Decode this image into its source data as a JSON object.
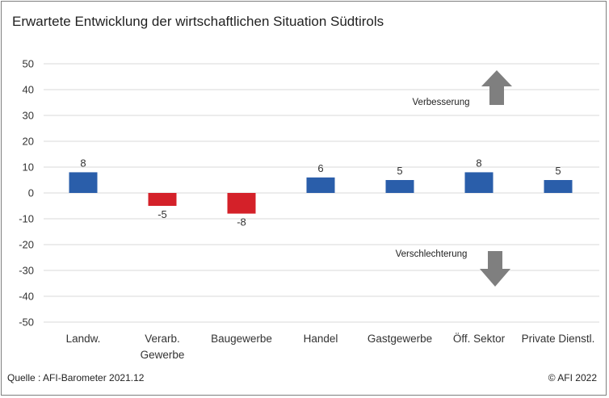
{
  "chart_data": {
    "type": "bar",
    "title": "Erwartete Entwicklung der wirtschaftlichen Situation Südtirols",
    "categories": [
      "Landw.",
      "Verarb.\nGewerbe",
      "Baugewerbe",
      "Handel",
      "Gastgewerbe",
      "Öff. Sektor",
      "Private Dienstl."
    ],
    "values": [
      8,
      -5,
      -8,
      6,
      5,
      8,
      5
    ],
    "data_labels": [
      "8",
      "-5",
      "-8",
      "6",
      "5",
      "8",
      "5"
    ],
    "ylim": [
      -50,
      50
    ],
    "yticks": [
      50,
      40,
      30,
      20,
      10,
      0,
      -10,
      -20,
      -30,
      -40,
      -50
    ],
    "grid": true,
    "legend": "none",
    "colors": {
      "positive": "#2a5eaa",
      "negative": "#d42129",
      "grid": "#d9d9d9",
      "arrow": "#7f7f7f"
    },
    "annotations": [
      {
        "text": "Verbesserung",
        "arrow": "up"
      },
      {
        "text": "Verschlechterung",
        "arrow": "down"
      }
    ]
  },
  "footer": {
    "source": "Quelle : AFI-Barometer 2021.12",
    "copyright": "© AFI 2022"
  }
}
